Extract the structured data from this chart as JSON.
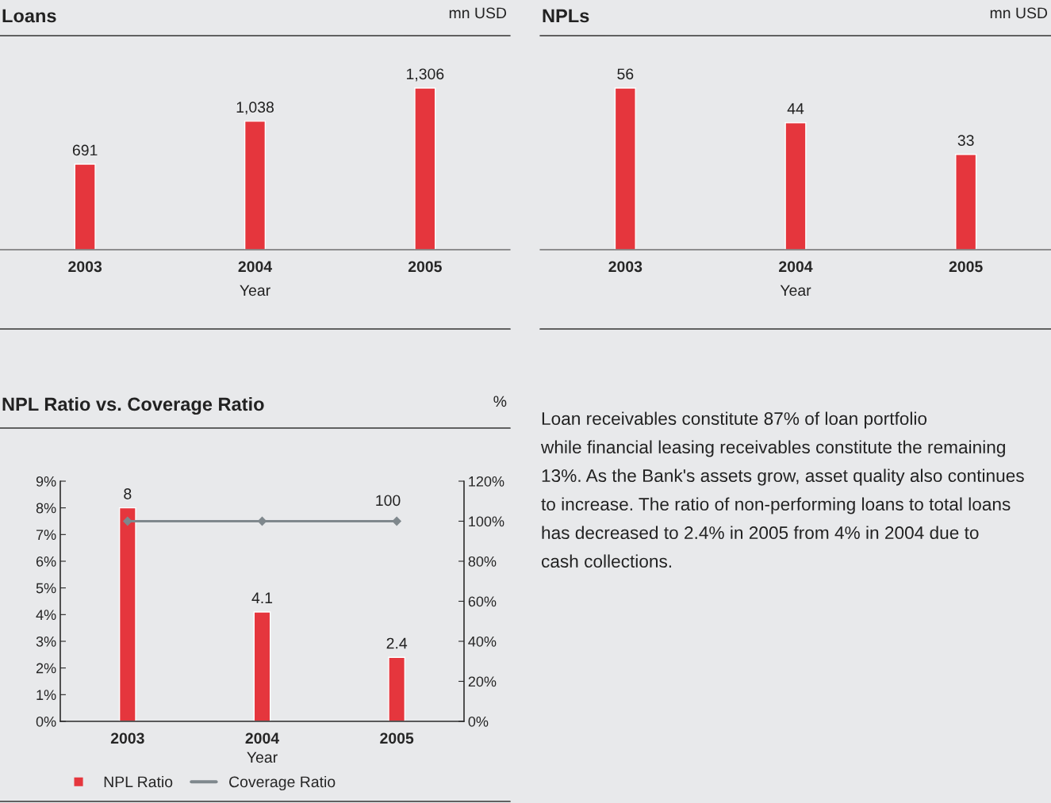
{
  "chart_data": [
    {
      "type": "bar",
      "title": "Loans",
      "subtitle": "mn USD",
      "xlabel": "Year",
      "categories": [
        "2003",
        "2004",
        "2005"
      ],
      "values": [
        691,
        1038,
        1306
      ],
      "value_labels": [
        "691",
        "1,038",
        "1,306"
      ],
      "color": "#e5363d",
      "tick_labels": "x",
      "grid": false,
      "legend": false
    },
    {
      "type": "bar",
      "title": "NPLs",
      "subtitle": "mn USD",
      "xlabel": "Year",
      "categories": [
        "2003",
        "2004",
        "2005"
      ],
      "values": [
        56,
        44,
        33
      ],
      "color": "#e5363d",
      "data_labels": true,
      "tick_labels": "x",
      "grid": false,
      "legend": false
    },
    {
      "type": "bar",
      "title": "NPL Ratio vs. Coverage Ratio",
      "subtitle": "%",
      "xlabel": "Year",
      "categories": [
        "2003",
        "2004",
        "2005"
      ],
      "series": [
        {
          "name": "NPL Ratio",
          "type": "bar",
          "color": "#e5363d",
          "values": [
            8,
            4.1,
            2.4
          ],
          "value_labels": [
            "8",
            "4.1",
            "2.4"
          ]
        },
        {
          "name": "Coverage Ratio",
          "type": "line",
          "axis": "y2",
          "color": "#7f888d",
          "values": [
            100,
            100,
            100
          ],
          "value_labels": [
            null,
            null,
            "100"
          ]
        }
      ],
      "ylim": [
        0,
        9
      ],
      "yticks": [
        {
          "value": 0,
          "label": "0%"
        },
        {
          "value": 1,
          "label": "1%"
        },
        {
          "value": 2,
          "label": "2%"
        },
        {
          "value": 3,
          "label": "3%"
        },
        {
          "value": 4,
          "label": "4%"
        },
        {
          "value": 5,
          "label": "5%"
        },
        {
          "value": 6,
          "label": "6%"
        },
        {
          "value": 7,
          "label": "7%"
        },
        {
          "value": 8,
          "label": "8%"
        },
        {
          "value": 9,
          "label": "9%"
        }
      ],
      "y2lim": [
        0,
        120
      ],
      "y2ticks": [
        {
          "value": 0,
          "label": "0%"
        },
        {
          "value": 20,
          "label": "20%"
        },
        {
          "value": 40,
          "label": "40%"
        },
        {
          "value": 60,
          "label": "60%"
        },
        {
          "value": 80,
          "label": "80%"
        },
        {
          "value": 100,
          "label": "100%"
        },
        {
          "value": 120,
          "label": "120%"
        }
      ],
      "marker": "diamond",
      "line_style": "solid",
      "grid": false,
      "legend": "bottom"
    },
    {
      "type": "other",
      "annotations": [
        "Loan receivables constitute 87% of loan portfolio",
        "while financial leasing receivables constitute the remaining",
        "13%. As the Bank's assets grow, asset quality also continues",
        "to increase. The ratio of non-performing loans to total loans",
        "has decreased to 2.4% in 2005 from 4% in 2004 due to",
        "cash collections."
      ]
    }
  ]
}
